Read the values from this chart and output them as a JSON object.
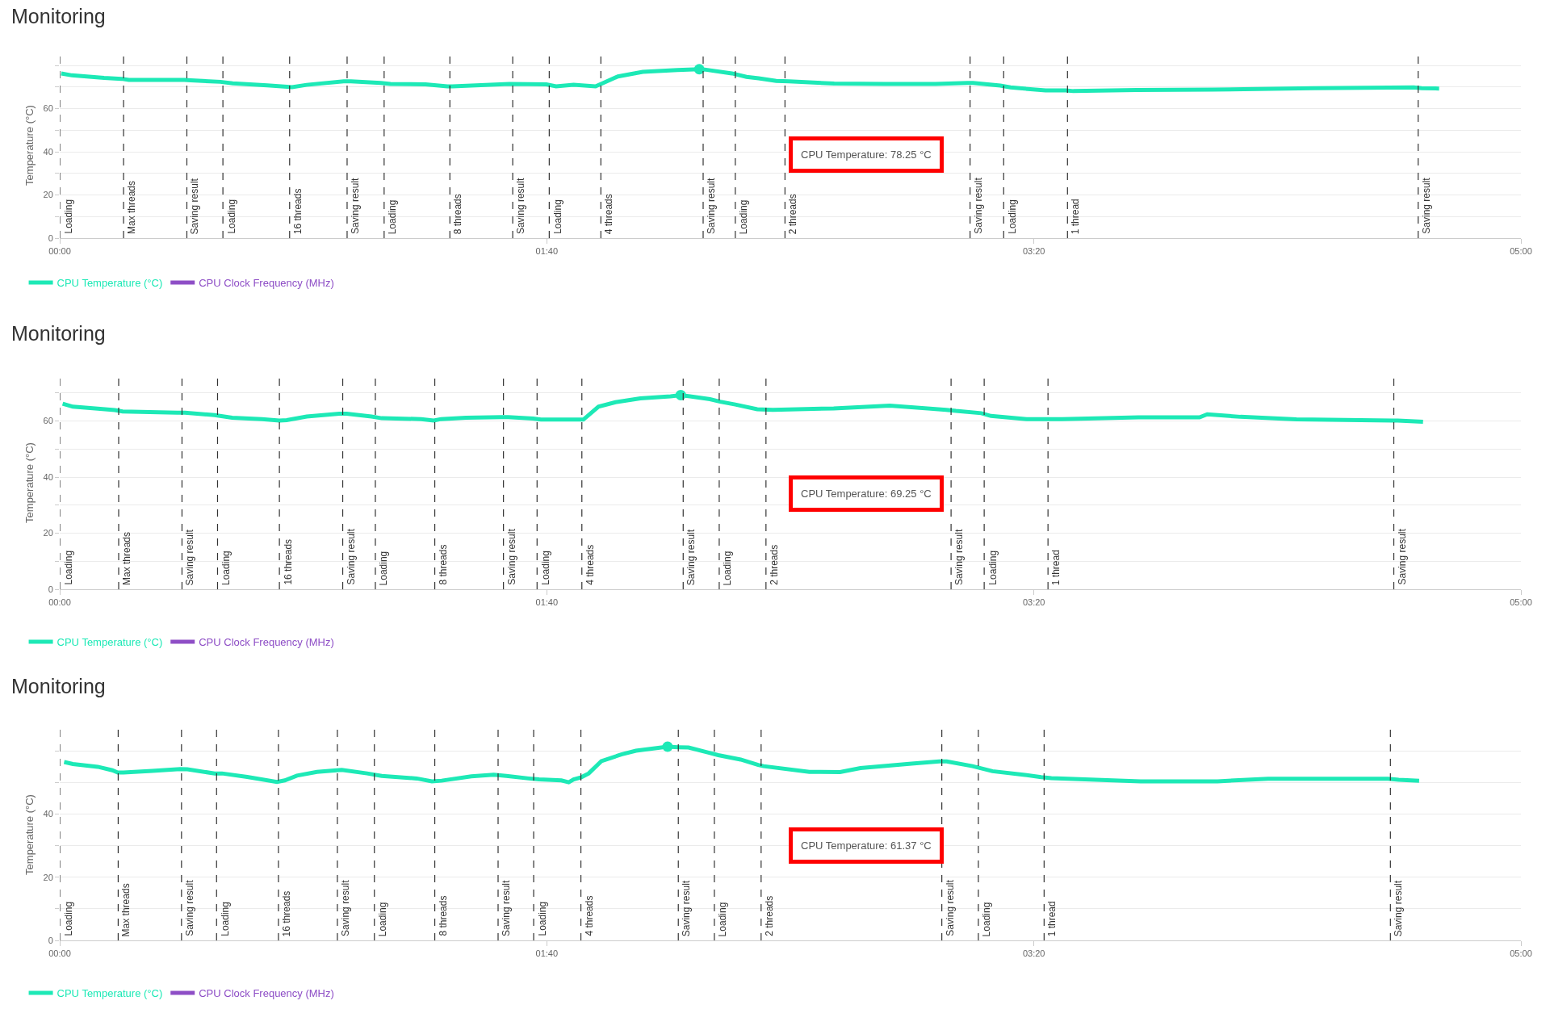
{
  "chart_data": [
    {
      "type": "line",
      "title": "Monitoring",
      "ylabel": "Temperature (°C)",
      "legend": "bottom",
      "grid": "y",
      "xlim": [
        0,
        300
      ],
      "ylim": [
        0,
        86
      ],
      "xticks": [
        {
          "value": 0,
          "label": "00:00"
        },
        {
          "value": 100,
          "label": "01:40"
        },
        {
          "value": 200,
          "label": "03:20"
        },
        {
          "value": 300,
          "label": "05:00"
        }
      ],
      "yticks": [
        0,
        {
          "value": 10,
          "label": null
        },
        20,
        {
          "value": 30,
          "label": null
        },
        40,
        {
          "value": 50,
          "label": null
        },
        60,
        {
          "value": 70,
          "label": null
        },
        {
          "value": 80,
          "label": null
        }
      ],
      "series": [
        {
          "name": "CPU Temperature (°C)",
          "color": "#1de9b6",
          "x": [
            0.3,
            2.5,
            9.1,
            12.7,
            14.2,
            21.3,
            25.6,
            26.9,
            33,
            35.5,
            42.6,
            46.7,
            47.7,
            50.7,
            58.3,
            59.8,
            65.9,
            67.9,
            75.1,
            79.6,
            80.6,
            92.3,
            99.9,
            101.9,
            105.5,
            110,
            111.6,
            114.6,
            119.7,
            126.8,
            131.3,
            132.4,
            138,
            141,
            143.5,
            147.1,
            149.7,
            159,
            169.4,
            179.8,
            186.4,
            187.5,
            193.1,
            195.2,
            202.4,
            206.6,
            208.1,
            221.1,
            236.6,
            257.3,
            278,
            279.6,
            283.2
          ],
          "values": [
            76.3,
            75.4,
            74.2,
            73.8,
            73.3,
            73.3,
            73.3,
            73.1,
            72.4,
            71.7,
            70.8,
            70.1,
            69.9,
            71,
            72.6,
            72.6,
            71.9,
            71.4,
            71.2,
            70.3,
            70.3,
            71.4,
            71.2,
            70.3,
            71,
            70.3,
            71.9,
            74.9,
            77,
            77.9,
            78.25,
            78.1,
            76.3,
            74.7,
            74,
            72.8,
            72.6,
            71.6,
            71.4,
            71.4,
            71.9,
            71.9,
            70.7,
            69.8,
            68.4,
            68.4,
            68.1,
            68.6,
            68.8,
            69.5,
            69.8,
            69.5,
            69.3
          ]
        },
        {
          "name": "CPU Clock Frequency (MHz)",
          "color": "#8e4ec6"
        },
        {
          "type": "scatter",
          "marker": "circle",
          "color": "#1de9b6",
          "x": [
            131.3
          ],
          "values": [
            78.25
          ]
        }
      ],
      "ref_lines": [
        {
          "axis": "x",
          "value": 0,
          "label": "Loading",
          "color": "#333333",
          "line_style": "dashed"
        },
        {
          "axis": "x",
          "value": 13.1,
          "label": "Max threads",
          "color": "#333333",
          "line_style": "dashed"
        },
        {
          "axis": "x",
          "value": 26.1,
          "label": "Saving result",
          "color": "#333333",
          "line_style": "dashed"
        },
        {
          "axis": "x",
          "value": 33.5,
          "label": "Loading",
          "color": "#333333",
          "line_style": "dashed"
        },
        {
          "axis": "x",
          "value": 47.2,
          "label": "16 threads",
          "color": "#333333",
          "line_style": "dashed"
        },
        {
          "axis": "x",
          "value": 59,
          "label": "Saving result",
          "color": "#333333",
          "line_style": "dashed"
        },
        {
          "axis": "x",
          "value": 66.6,
          "label": "Loading",
          "color": "#333333",
          "line_style": "dashed"
        },
        {
          "axis": "x",
          "value": 80.1,
          "label": "8 threads",
          "color": "#333333",
          "line_style": "dashed"
        },
        {
          "axis": "x",
          "value": 93,
          "label": "Saving result",
          "color": "#333333",
          "line_style": "dashed"
        },
        {
          "axis": "x",
          "value": 100.5,
          "label": "Loading",
          "color": "#333333",
          "line_style": "dashed"
        },
        {
          "axis": "x",
          "value": 111.1,
          "label": "4 threads",
          "color": "#333333",
          "line_style": "dashed"
        },
        {
          "axis": "x",
          "value": 132.1,
          "label": "Saving result",
          "color": "#333333",
          "line_style": "dashed"
        },
        {
          "axis": "x",
          "value": 138.7,
          "label": "Loading",
          "color": "#333333",
          "line_style": "dashed"
        },
        {
          "axis": "x",
          "value": 148.9,
          "label": "2 threads",
          "color": "#333333",
          "line_style": "dashed"
        },
        {
          "axis": "x",
          "value": 186.9,
          "label": "Saving result",
          "color": "#333333",
          "line_style": "dashed"
        },
        {
          "axis": "x",
          "value": 193.8,
          "label": "Loading",
          "color": "#333333",
          "line_style": "dashed"
        },
        {
          "axis": "x",
          "value": 206.9,
          "label": "1 thread",
          "color": "#333333",
          "line_style": "dashed"
        },
        {
          "axis": "x",
          "value": 278.9,
          "label": "Saving result",
          "color": "#333333",
          "line_style": "dashed"
        }
      ],
      "annotations": [
        "CPU Temperature: 78.25 °C"
      ]
    },
    {
      "type": "line",
      "title": "Monitoring",
      "ylabel": "Temperature (°C)",
      "legend": "bottom",
      "grid": "y",
      "xlim": [
        0,
        300
      ],
      "ylim": [
        0,
        76
      ],
      "xticks": [
        {
          "value": 0,
          "label": "00:00"
        },
        {
          "value": 100,
          "label": "01:40"
        },
        {
          "value": 200,
          "label": "03:20"
        },
        {
          "value": 300,
          "label": "05:00"
        }
      ],
      "yticks": [
        0,
        {
          "value": 10,
          "label": null
        },
        20,
        {
          "value": 30,
          "label": null
        },
        40,
        {
          "value": 50,
          "label": null
        },
        60,
        {
          "value": 70,
          "label": null
        }
      ],
      "series": [
        {
          "name": "CPU Temperature (°C)",
          "color": "#1de9b6",
          "x": [
            0.6,
            2.7,
            7.8,
            11.3,
            12.9,
            24.1,
            25.7,
            31.8,
            35.4,
            41.5,
            45.1,
            46.6,
            50.7,
            57.4,
            58.9,
            64,
            66.1,
            74.2,
            76.8,
            78.3,
            83.4,
            90.6,
            92.1,
            97.2,
            98.8,
            105.9,
            107.5,
            110.6,
            114.1,
            119.2,
            125.4,
            127.5,
            129.4,
            133.5,
            135.6,
            138.7,
            143.2,
            146.4,
            158.9,
            170.4,
            182,
            184,
            189.2,
            191.2,
            198.5,
            202.7,
            205.8,
            221.5,
            234,
            235.6,
            242.4,
            253.9,
            273.7,
            274.7,
            279.9
          ],
          "values": [
            66.2,
            65.1,
            64.4,
            63.9,
            63.4,
            63,
            63,
            62.1,
            61.2,
            60.7,
            60.2,
            60.3,
            61.6,
            62.6,
            62.6,
            61.6,
            61,
            60.7,
            60.2,
            60.7,
            61.2,
            61.4,
            61.4,
            60.9,
            60.5,
            60.5,
            60.5,
            65.1,
            66.7,
            68.1,
            68.8,
            69.25,
            68.8,
            67.8,
            66.9,
            65.9,
            64.2,
            64,
            64.5,
            65.5,
            64,
            63.6,
            62.8,
            61.8,
            60.7,
            60.7,
            60.7,
            61.3,
            61.3,
            62.4,
            61.5,
            60.6,
            60.2,
            60.2,
            59.7
          ]
        },
        {
          "name": "CPU Clock Frequency (MHz)",
          "color": "#8e4ec6"
        },
        {
          "type": "scatter",
          "marker": "circle",
          "color": "#1de9b6",
          "x": [
            127.5
          ],
          "values": [
            69.25
          ]
        }
      ],
      "ref_lines": [
        {
          "axis": "x",
          "value": 0,
          "label": "Loading",
          "color": "#333333",
          "line_style": "dashed"
        },
        {
          "axis": "x",
          "value": 12.1,
          "label": "Max threads",
          "color": "#333333",
          "line_style": "dashed"
        },
        {
          "axis": "x",
          "value": 25.1,
          "label": "Saving result",
          "color": "#333333",
          "line_style": "dashed"
        },
        {
          "axis": "x",
          "value": 32.4,
          "label": "Loading",
          "color": "#333333",
          "line_style": "dashed"
        },
        {
          "axis": "x",
          "value": 45.1,
          "label": "16 threads",
          "color": "#333333",
          "line_style": "dashed"
        },
        {
          "axis": "x",
          "value": 58.1,
          "label": "Saving result",
          "color": "#333333",
          "line_style": "dashed"
        },
        {
          "axis": "x",
          "value": 64.8,
          "label": "Loading",
          "color": "#333333",
          "line_style": "dashed"
        },
        {
          "axis": "x",
          "value": 77,
          "label": "8 threads",
          "color": "#333333",
          "line_style": "dashed"
        },
        {
          "axis": "x",
          "value": 91.1,
          "label": "Saving result",
          "color": "#333333",
          "line_style": "dashed"
        },
        {
          "axis": "x",
          "value": 98,
          "label": "Loading",
          "color": "#333333",
          "line_style": "dashed"
        },
        {
          "axis": "x",
          "value": 107.2,
          "label": "4 threads",
          "color": "#333333",
          "line_style": "dashed"
        },
        {
          "axis": "x",
          "value": 128,
          "label": "Saving result",
          "color": "#333333",
          "line_style": "dashed"
        },
        {
          "axis": "x",
          "value": 135.4,
          "label": "Loading",
          "color": "#333333",
          "line_style": "dashed"
        },
        {
          "axis": "x",
          "value": 145,
          "label": "2 threads",
          "color": "#333333",
          "line_style": "dashed"
        },
        {
          "axis": "x",
          "value": 183,
          "label": "Saving result",
          "color": "#333333",
          "line_style": "dashed"
        },
        {
          "axis": "x",
          "value": 189.8,
          "label": "Loading",
          "color": "#333333",
          "line_style": "dashed"
        },
        {
          "axis": "x",
          "value": 202.9,
          "label": "1 thread",
          "color": "#333333",
          "line_style": "dashed"
        },
        {
          "axis": "x",
          "value": 273.9,
          "label": "Saving result",
          "color": "#333333",
          "line_style": "dashed"
        }
      ],
      "annotations": [
        "CPU Temperature: 69.25 °C"
      ]
    },
    {
      "type": "line",
      "title": "Monitoring",
      "ylabel": "Temperature (°C)",
      "legend": "bottom",
      "grid": "y",
      "xlim": [
        0,
        300
      ],
      "ylim": [
        0,
        67
      ],
      "xticks": [
        {
          "value": 0,
          "label": "00:00"
        },
        {
          "value": 100,
          "label": "01:40"
        },
        {
          "value": 200,
          "label": "03:20"
        },
        {
          "value": 300,
          "label": "05:00"
        }
      ],
      "yticks": [
        0,
        {
          "value": 10,
          "label": null
        },
        20,
        {
          "value": 30,
          "label": null
        },
        40,
        {
          "value": 50,
          "label": null
        },
        {
          "value": 60,
          "label": null
        }
      ],
      "series": [
        {
          "name": "CPU Temperature (°C)",
          "color": "#1de9b6",
          "x": [
            0.9,
            2.7,
            7.8,
            10.8,
            11.9,
            13.1,
            19,
            24.7,
            26.2,
            31.8,
            33.3,
            38.5,
            44.6,
            46.2,
            48.7,
            52.8,
            56.9,
            57.9,
            63.1,
            66.1,
            73.3,
            76.4,
            78.4,
            84.5,
            89.1,
            91.7,
            96.3,
            98.4,
            103,
            104.5,
            105.5,
            107.1,
            108.6,
            111.2,
            115.3,
            118.3,
            124.8,
            127,
            129.1,
            133.2,
            135.2,
            139.8,
            143.4,
            144.5,
            153.9,
            160.2,
            164.4,
            174.9,
            180.6,
            182.1,
            187.4,
            191.5,
            197.8,
            201.5,
            203.6,
            221.9,
            237.7,
            248.1,
            272.7,
            274.9,
            279.1
          ],
          "values": [
            56.5,
            55.9,
            55,
            53.9,
            53.2,
            53.2,
            53.7,
            54.3,
            54.2,
            52.9,
            52.9,
            51.8,
            50.2,
            50.7,
            52.2,
            53.4,
            53.9,
            54,
            52.9,
            52.1,
            51.3,
            50.4,
            50.6,
            52,
            52.5,
            52.1,
            51.3,
            51,
            50.7,
            50.1,
            51,
            51.7,
            52.9,
            56.8,
            58.9,
            60.1,
            61.37,
            61.2,
            61.1,
            59.5,
            58.7,
            57.3,
            55.6,
            55.2,
            53.4,
            53.3,
            54.6,
            56,
            56.7,
            56.7,
            55.2,
            53.6,
            52.5,
            51.7,
            51.4,
            50.4,
            50.4,
            51.2,
            51.2,
            50.9,
            50.6
          ]
        },
        {
          "name": "CPU Clock Frequency (MHz)",
          "color": "#8e4ec6"
        },
        {
          "type": "scatter",
          "marker": "circle",
          "color": "#1de9b6",
          "x": [
            124.8
          ],
          "values": [
            61.37
          ]
        }
      ],
      "ref_lines": [
        {
          "axis": "x",
          "value": 0,
          "label": "Loading",
          "color": "#333333",
          "line_style": "dashed"
        },
        {
          "axis": "x",
          "value": 12,
          "label": "Max threads",
          "color": "#333333",
          "line_style": "dashed"
        },
        {
          "axis": "x",
          "value": 25,
          "label": "Saving result",
          "color": "#333333",
          "line_style": "dashed"
        },
        {
          "axis": "x",
          "value": 32.2,
          "label": "Loading",
          "color": "#333333",
          "line_style": "dashed"
        },
        {
          "axis": "x",
          "value": 44.9,
          "label": "16 threads",
          "color": "#333333",
          "line_style": "dashed"
        },
        {
          "axis": "x",
          "value": 57,
          "label": "Saving result",
          "color": "#333333",
          "line_style": "dashed"
        },
        {
          "axis": "x",
          "value": 64.6,
          "label": "Loading",
          "color": "#333333",
          "line_style": "dashed"
        },
        {
          "axis": "x",
          "value": 77,
          "label": "8 threads",
          "color": "#333333",
          "line_style": "dashed"
        },
        {
          "axis": "x",
          "value": 90,
          "label": "Saving result",
          "color": "#333333",
          "line_style": "dashed"
        },
        {
          "axis": "x",
          "value": 97.3,
          "label": "Loading",
          "color": "#333333",
          "line_style": "dashed"
        },
        {
          "axis": "x",
          "value": 107,
          "label": "4 threads",
          "color": "#333333",
          "line_style": "dashed"
        },
        {
          "axis": "x",
          "value": 127,
          "label": "Saving result",
          "color": "#333333",
          "line_style": "dashed"
        },
        {
          "axis": "x",
          "value": 134.4,
          "label": "Loading",
          "color": "#333333",
          "line_style": "dashed"
        },
        {
          "axis": "x",
          "value": 144,
          "label": "2 threads",
          "color": "#333333",
          "line_style": "dashed"
        },
        {
          "axis": "x",
          "value": 181.1,
          "label": "Saving result",
          "color": "#333333",
          "line_style": "dashed"
        },
        {
          "axis": "x",
          "value": 188.6,
          "label": "Loading",
          "color": "#333333",
          "line_style": "dashed"
        },
        {
          "axis": "x",
          "value": 202.1,
          "label": "1 thread",
          "color": "#333333",
          "line_style": "dashed"
        },
        {
          "axis": "x",
          "value": 273.2,
          "label": "Saving result",
          "color": "#333333",
          "line_style": "dashed"
        }
      ],
      "annotations": [
        "CPU Temperature: 61.37 °C"
      ]
    }
  ]
}
